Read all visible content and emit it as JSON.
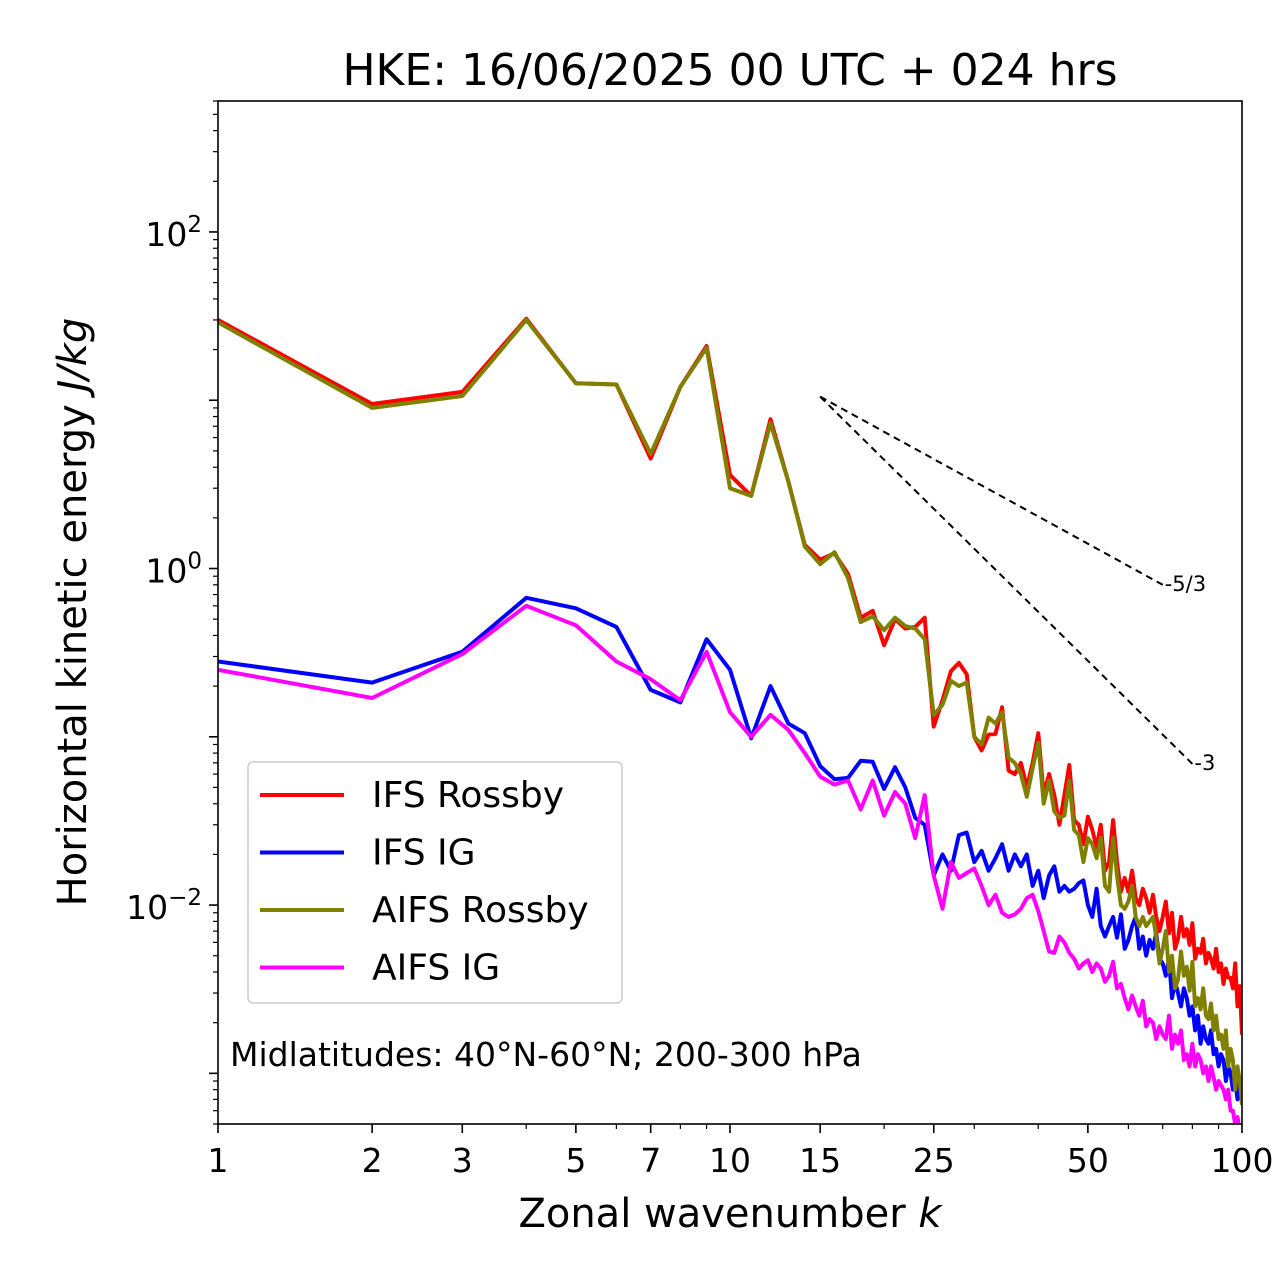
{
  "chart_data": {
    "type": "line",
    "title": "HKE: 16/06/2025 00 UTC + 024 hrs",
    "xlabel": "Zonal wavenumber",
    "xlabel_var": "k",
    "ylabel": "Horizontal kinetic energy",
    "ylabel_unit": "J/kg",
    "xscale": "log",
    "yscale": "log",
    "xlim": [
      1,
      100
    ],
    "ylim": [
      0.0005,
      600
    ],
    "x_ticks": [
      {
        "value": 1,
        "label": "1"
      },
      {
        "value": 2,
        "label": "2"
      },
      {
        "value": 3,
        "label": "3"
      },
      {
        "value": 5,
        "label": "5"
      },
      {
        "value": 7,
        "label": "7"
      },
      {
        "value": 10,
        "label": "10"
      },
      {
        "value": 15,
        "label": "15"
      },
      {
        "value": 25,
        "label": "25"
      },
      {
        "value": 50,
        "label": "50"
      },
      {
        "value": 100,
        "label": "100"
      }
    ],
    "y_ticks": [
      {
        "value": 0.01,
        "base": "10",
        "exp": "−2"
      },
      {
        "value": 1,
        "base": "10",
        "exp": "0"
      },
      {
        "value": 100,
        "base": "10",
        "exp": "2"
      }
    ],
    "annotation": "Midlatitudes: 40°N-60°N; 200-300 hPa",
    "legend": {
      "position": "lower-left"
    },
    "reference_lines": [
      {
        "label": "-5/3",
        "x": [
          15,
          70
        ],
        "y": [
          10.5,
          0.8
        ]
      },
      {
        "label": "-3",
        "x": [
          15,
          80
        ],
        "y": [
          10.5,
          0.069
        ]
      }
    ],
    "series": [
      {
        "name": "IFS Rossby",
        "color": "#ff0000",
        "x": [
          1,
          2,
          3,
          4,
          5,
          6,
          7,
          8,
          9,
          10,
          11,
          12,
          13,
          14,
          15,
          16,
          17,
          18,
          19,
          20,
          21,
          22,
          23,
          24,
          25,
          26,
          27,
          28,
          29,
          30,
          31,
          32,
          33,
          34,
          35,
          36,
          37,
          38,
          39,
          40,
          41,
          42,
          43,
          44,
          45,
          46,
          47,
          48,
          49,
          50,
          51,
          52,
          53,
          54,
          55,
          56,
          57,
          58,
          59,
          60,
          61,
          62,
          63,
          64,
          65,
          66,
          67,
          68,
          69,
          70,
          71,
          72,
          73,
          74,
          75,
          76,
          77,
          78,
          79,
          80,
          81,
          82,
          83,
          84,
          85,
          86,
          87,
          88,
          89,
          90,
          91,
          92,
          93,
          94,
          95,
          96,
          97,
          98,
          99,
          100
        ],
        "y": [
          30,
          9.5,
          11.2,
          30.5,
          12.6,
          12.4,
          4.5,
          12,
          21,
          3.6,
          2.7,
          7.7,
          3.3,
          1.38,
          1.13,
          1.23,
          0.93,
          0.51,
          0.56,
          0.35,
          0.5,
          0.44,
          0.45,
          0.51,
          0.115,
          0.165,
          0.245,
          0.275,
          0.235,
          0.1,
          0.083,
          0.103,
          0.104,
          0.15,
          0.063,
          0.06,
          0.07,
          0.05,
          0.07,
          0.105,
          0.045,
          0.06,
          0.045,
          0.03,
          0.045,
          0.068,
          0.032,
          0.03,
          0.023,
          0.0335,
          0.028,
          0.022,
          0.03,
          0.016,
          0.018,
          0.032,
          0.018,
          0.012,
          0.0145,
          0.012,
          0.016,
          0.011,
          0.01,
          0.0125,
          0.011,
          0.009,
          0.0115,
          0.0085,
          0.007,
          0.0085,
          0.0105,
          0.0068,
          0.009,
          0.0055,
          0.0063,
          0.0085,
          0.0065,
          0.0072,
          0.0058,
          0.0078,
          0.0048,
          0.0055,
          0.0052,
          0.0063,
          0.0045,
          0.0052,
          0.0048,
          0.0042,
          0.0055,
          0.004,
          0.0045,
          0.0034,
          0.0042,
          0.0037,
          0.0037,
          0.0032,
          0.0045,
          0.0025,
          0.0033,
          0.0017
        ]
      },
      {
        "name": "IFS IG",
        "color": "#0000ff",
        "x": [
          1,
          2,
          3,
          4,
          5,
          6,
          7,
          8,
          9,
          10,
          11,
          12,
          13,
          14,
          15,
          16,
          17,
          18,
          19,
          20,
          21,
          22,
          23,
          24,
          25,
          26,
          27,
          28,
          29,
          30,
          31,
          32,
          33,
          34,
          35,
          36,
          37,
          38,
          39,
          40,
          41,
          42,
          43,
          44,
          45,
          46,
          47,
          48,
          49,
          50,
          51,
          52,
          53,
          54,
          55,
          56,
          57,
          58,
          59,
          60,
          61,
          62,
          63,
          64,
          65,
          66,
          67,
          68,
          69,
          70,
          71,
          72,
          73,
          74,
          75,
          76,
          77,
          78,
          79,
          80,
          81,
          82,
          83,
          84,
          85,
          86,
          87,
          88,
          89,
          90,
          91,
          92,
          93,
          94,
          95,
          96,
          97,
          98,
          99,
          100
        ],
        "y": [
          0.28,
          0.21,
          0.32,
          0.67,
          0.58,
          0.45,
          0.19,
          0.16,
          0.38,
          0.25,
          0.098,
          0.2,
          0.12,
          0.105,
          0.067,
          0.056,
          0.057,
          0.072,
          0.071,
          0.049,
          0.066,
          0.05,
          0.033,
          0.03,
          0.015,
          0.02,
          0.016,
          0.026,
          0.027,
          0.018,
          0.021,
          0.016,
          0.019,
          0.023,
          0.016,
          0.02,
          0.017,
          0.02,
          0.013,
          0.016,
          0.011,
          0.015,
          0.017,
          0.012,
          0.013,
          0.012,
          0.0125,
          0.0135,
          0.014,
          0.01,
          0.0085,
          0.0125,
          0.0075,
          0.0065,
          0.0075,
          0.0085,
          0.0064,
          0.0088,
          0.0055,
          0.0062,
          0.0075,
          0.0085,
          0.0055,
          0.0065,
          0.005,
          0.0062,
          0.0055,
          0.0068,
          0.0048,
          0.0045,
          0.0038,
          0.0048,
          0.0028,
          0.0035,
          0.003,
          0.0025,
          0.0032,
          0.0028,
          0.0022,
          0.0025,
          0.0018,
          0.0022,
          0.0015,
          0.0019,
          0.0016,
          0.0015,
          0.0018,
          0.0013,
          0.0014,
          0.0011,
          0.0013,
          0.0012,
          0.0009,
          0.0011,
          0.001,
          0.0008,
          0.0009,
          0.0007,
          0.0009,
          0.00072
        ]
      },
      {
        "name": "AIFS Rossby",
        "color": "#808000",
        "x": [
          1,
          2,
          3,
          4,
          5,
          6,
          7,
          8,
          9,
          10,
          11,
          12,
          13,
          14,
          15,
          16,
          17,
          18,
          19,
          20,
          21,
          22,
          23,
          24,
          25,
          26,
          27,
          28,
          29,
          30,
          31,
          32,
          33,
          34,
          35,
          36,
          37,
          38,
          39,
          40,
          41,
          42,
          43,
          44,
          45,
          46,
          47,
          48,
          49,
          50,
          51,
          52,
          53,
          54,
          55,
          56,
          57,
          58,
          59,
          60,
          61,
          62,
          63,
          64,
          65,
          66,
          67,
          68,
          69,
          70,
          71,
          72,
          73,
          74,
          75,
          76,
          77,
          78,
          79,
          80,
          81,
          82,
          83,
          84,
          85,
          86,
          87,
          88,
          89,
          90,
          91,
          92,
          93,
          94,
          95,
          96,
          97,
          98,
          99,
          100
        ],
        "y": [
          29,
          9,
          10.6,
          30,
          12.6,
          12.4,
          4.8,
          12,
          20.5,
          3,
          2.7,
          7.3,
          3.3,
          1.35,
          1.06,
          1.25,
          0.88,
          0.48,
          0.52,
          0.43,
          0.51,
          0.455,
          0.44,
          0.38,
          0.135,
          0.155,
          0.215,
          0.2,
          0.21,
          0.1,
          0.09,
          0.13,
          0.12,
          0.14,
          0.075,
          0.07,
          0.06,
          0.044,
          0.065,
          0.092,
          0.04,
          0.055,
          0.036,
          0.033,
          0.034,
          0.055,
          0.028,
          0.026,
          0.018,
          0.025,
          0.023,
          0.019,
          0.025,
          0.013,
          0.012,
          0.025,
          0.015,
          0.01,
          0.0095,
          0.0105,
          0.013,
          0.0085,
          0.0075,
          0.0085,
          0.0075,
          0.008,
          0.0085,
          0.0065,
          0.0045,
          0.0055,
          0.007,
          0.004,
          0.005,
          0.0032,
          0.0036,
          0.0053,
          0.0038,
          0.0043,
          0.0031,
          0.0046,
          0.0025,
          0.0028,
          0.0024,
          0.0032,
          0.0022,
          0.0021,
          0.0026,
          0.0018,
          0.0022,
          0.0016,
          0.0017,
          0.0014,
          0.0018,
          0.0011,
          0.0014,
          0.0012,
          0.0008,
          0.0011,
          0.0009,
          0.00065
        ]
      },
      {
        "name": "AIFS IG",
        "color": "#ff00ff",
        "x": [
          1,
          2,
          3,
          4,
          5,
          6,
          7,
          8,
          9,
          10,
          11,
          12,
          13,
          14,
          15,
          16,
          17,
          18,
          19,
          20,
          21,
          22,
          23,
          24,
          25,
          26,
          27,
          28,
          29,
          30,
          31,
          32,
          33,
          34,
          35,
          36,
          37,
          38,
          39,
          40,
          41,
          42,
          43,
          44,
          45,
          46,
          47,
          48,
          49,
          50,
          51,
          52,
          53,
          54,
          55,
          56,
          57,
          58,
          59,
          60,
          61,
          62,
          63,
          64,
          65,
          66,
          67,
          68,
          69,
          70,
          71,
          72,
          73,
          74,
          75,
          76,
          77,
          78,
          79,
          80,
          81,
          82,
          83,
          84,
          85,
          86,
          87,
          88,
          89,
          90,
          91,
          92,
          93,
          94,
          95,
          96,
          97,
          98,
          99,
          100
        ],
        "y": [
          0.25,
          0.17,
          0.31,
          0.6,
          0.46,
          0.28,
          0.22,
          0.165,
          0.32,
          0.14,
          0.1,
          0.135,
          0.11,
          0.08,
          0.058,
          0.052,
          0.055,
          0.037,
          0.055,
          0.034,
          0.047,
          0.04,
          0.025,
          0.045,
          0.015,
          0.0095,
          0.018,
          0.0145,
          0.0155,
          0.0165,
          0.013,
          0.01,
          0.0115,
          0.009,
          0.0085,
          0.0088,
          0.0095,
          0.011,
          0.0115,
          0.0092,
          0.007,
          0.0053,
          0.0052,
          0.0065,
          0.006,
          0.0052,
          0.0048,
          0.0042,
          0.0045,
          0.0047,
          0.004,
          0.0045,
          0.0042,
          0.0035,
          0.0038,
          0.0046,
          0.0032,
          0.0034,
          0.0028,
          0.0024,
          0.0029,
          0.0025,
          0.0022,
          0.0027,
          0.0019,
          0.0021,
          0.002,
          0.0016,
          0.0019,
          0.0017,
          0.0016,
          0.0022,
          0.0014,
          0.0017,
          0.0015,
          0.0018,
          0.0012,
          0.0013,
          0.0011,
          0.0015,
          0.0011,
          0.0013,
          0.0012,
          0.001,
          0.0011,
          0.0009,
          0.0011,
          0.00095,
          0.0008,
          0.0009,
          0.00085,
          0.0008,
          0.0007,
          0.0008,
          0.0006,
          0.0006,
          0.0005,
          0.00055,
          0.00045,
          0.0004
        ]
      }
    ]
  }
}
